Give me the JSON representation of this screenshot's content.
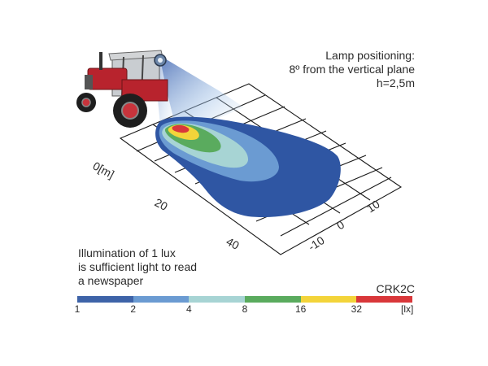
{
  "positioning": {
    "line1": "Lamp positioning:",
    "line2": "8º from the vertical plane",
    "line3": "h=2,5m"
  },
  "note": {
    "line1": "Illumination of 1 lux",
    "line2": "is sufficient light to read",
    "line3": "a newspaper"
  },
  "model": "CRK2C",
  "axes": {
    "distance_labels": [
      "0[m]",
      "20",
      "40"
    ],
    "lateral_labels": [
      "10",
      "0",
      "-10"
    ]
  },
  "scale": {
    "unit": "[lx]",
    "ticks": [
      "1",
      "2",
      "4",
      "8",
      "16",
      "32"
    ],
    "colors": [
      "#3e63a8",
      "#6b9bd2",
      "#a7d4d4",
      "#5aab5e",
      "#f3d43a",
      "#d9373a"
    ]
  },
  "illumination_zones": [
    {
      "lux": "1",
      "color": "#2f56a3"
    },
    {
      "lux": "2",
      "color": "#6b9bd2"
    },
    {
      "lux": "4",
      "color": "#a7d4d4"
    },
    {
      "lux": "8",
      "color": "#5aab5e"
    },
    {
      "lux": "16",
      "color": "#f3d43a"
    },
    {
      "lux": "32",
      "color": "#d9373a"
    }
  ]
}
